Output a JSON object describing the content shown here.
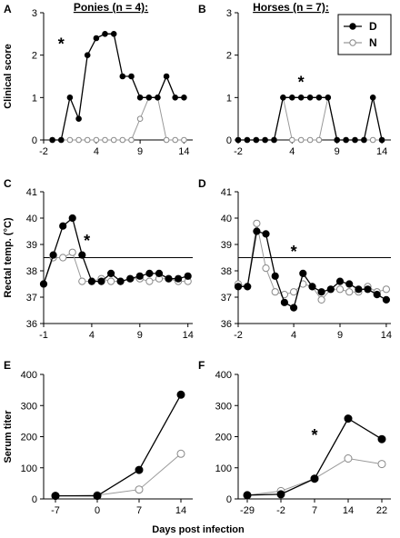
{
  "figure": {
    "x_axis_title": "Days post infection",
    "panel_letters": [
      "A",
      "B",
      "C",
      "D",
      "E",
      "F"
    ]
  },
  "colors": {
    "D": "#000000",
    "N": "#ffffff",
    "N_line": "#999999",
    "axis": "#000000"
  },
  "chart_data": [
    {
      "panel": "A",
      "type": "line",
      "title": "Ponies (n = 4):",
      "ylabel": "Clinical score",
      "xlim": [
        -2,
        15
      ],
      "ylim": [
        0,
        3
      ],
      "xticks": [
        -2,
        4,
        9,
        14
      ],
      "yticks": [
        0,
        1,
        2,
        3
      ],
      "annotations": [
        {
          "text": "*",
          "x": 0,
          "y": 2.3
        }
      ],
      "series": [
        {
          "name": "D",
          "x": [
            -1,
            0,
            1,
            2,
            3,
            4,
            5,
            6,
            7,
            8,
            9,
            10,
            11,
            12,
            13,
            14
          ],
          "y": [
            0,
            0,
            1,
            0.5,
            2,
            2.4,
            2.5,
            2.5,
            1.5,
            1.5,
            1,
            1,
            1,
            1.5,
            1,
            1
          ]
        },
        {
          "name": "N",
          "x": [
            -1,
            0,
            1,
            2,
            3,
            4,
            5,
            6,
            7,
            8,
            9,
            10,
            11,
            12,
            13,
            14
          ],
          "y": [
            0,
            0,
            0,
            0,
            0,
            0,
            0,
            0,
            0,
            0,
            0.5,
            1,
            1,
            0,
            0,
            0
          ]
        }
      ]
    },
    {
      "panel": "B",
      "type": "line",
      "title": "Horses (n = 7):",
      "xlim": [
        -2,
        15
      ],
      "ylim": [
        0,
        3
      ],
      "xticks": [
        -2,
        4,
        9,
        14
      ],
      "yticks": [
        0,
        1,
        2,
        3
      ],
      "legend": {
        "placement": "top-right",
        "entries": [
          "D",
          "N"
        ]
      },
      "annotations": [
        {
          "text": "*",
          "x": 5,
          "y": 1.4
        }
      ],
      "series": [
        {
          "name": "D",
          "x": [
            -2,
            -1,
            0,
            1,
            2,
            3,
            4,
            5,
            6,
            7,
            8,
            9,
            10,
            11,
            12,
            13,
            14
          ],
          "y": [
            0,
            0,
            0,
            0,
            0,
            1,
            1,
            1,
            1,
            1,
            1,
            0,
            0,
            0,
            0,
            1,
            0
          ]
        },
        {
          "name": "N",
          "x": [
            -2,
            -1,
            0,
            1,
            2,
            3,
            4,
            5,
            6,
            7,
            8,
            9,
            10,
            11,
            12,
            13,
            14
          ],
          "y": [
            0,
            0,
            0,
            0,
            0,
            1,
            0,
            0,
            0,
            0,
            1,
            0,
            0,
            0,
            0,
            0,
            0
          ]
        }
      ]
    },
    {
      "panel": "C",
      "type": "line",
      "ylabel": "Rectal temp. (°C)",
      "xlim": [
        -1,
        14.5
      ],
      "ylim": [
        36,
        41
      ],
      "xticks": [
        -1,
        4,
        9,
        14
      ],
      "yticks": [
        36,
        37,
        38,
        39,
        40,
        41
      ],
      "reference_line": 38.5,
      "annotations": [
        {
          "text": "*",
          "x": 3.5,
          "y": 39.2
        }
      ],
      "series": [
        {
          "name": "D",
          "x": [
            -1,
            0,
            1,
            2,
            3,
            4,
            5,
            6,
            7,
            8,
            9,
            10,
            11,
            12,
            13,
            14
          ],
          "y": [
            37.5,
            38.6,
            39.7,
            40.0,
            38.6,
            37.6,
            37.6,
            37.9,
            37.6,
            37.7,
            37.8,
            37.9,
            37.9,
            37.7,
            37.7,
            37.8
          ]
        },
        {
          "name": "N",
          "x": [
            -1,
            0,
            1,
            2,
            3,
            4,
            5,
            6,
            7,
            8,
            9,
            10,
            11,
            12,
            13,
            14
          ],
          "y": [
            37.5,
            38.5,
            38.5,
            38.7,
            37.6,
            37.6,
            37.7,
            37.6,
            37.6,
            37.7,
            37.7,
            37.6,
            37.7,
            37.7,
            37.6,
            37.6
          ]
        }
      ]
    },
    {
      "panel": "D",
      "type": "line",
      "xlim": [
        -2,
        14.5
      ],
      "ylim": [
        36,
        41
      ],
      "xticks": [
        -2,
        4,
        9,
        14
      ],
      "yticks": [
        36,
        37,
        38,
        39,
        40,
        41
      ],
      "reference_line": 38.5,
      "annotations": [
        {
          "text": "*",
          "x": 4,
          "y": 38.8
        }
      ],
      "series": [
        {
          "name": "D",
          "x": [
            -2,
            -1,
            0,
            1,
            2,
            3,
            4,
            5,
            6,
            7,
            8,
            9,
            10,
            11,
            12,
            13,
            14
          ],
          "y": [
            37.4,
            37.4,
            39.5,
            39.4,
            37.8,
            36.8,
            36.6,
            37.9,
            37.4,
            37.2,
            37.3,
            37.6,
            37.5,
            37.3,
            37.3,
            37.1,
            36.9
          ]
        },
        {
          "name": "N",
          "x": [
            -2,
            -1,
            0,
            1,
            2,
            3,
            4,
            5,
            6,
            7,
            8,
            9,
            10,
            11,
            12,
            13,
            14
          ],
          "y": [
            37.5,
            37.4,
            39.8,
            38.1,
            37.2,
            37.1,
            37.2,
            37.5,
            37.4,
            36.9,
            37.3,
            37.3,
            37.2,
            37.2,
            37.4,
            37.2,
            37.3
          ]
        }
      ]
    },
    {
      "panel": "E",
      "type": "line",
      "ylabel": "Serum titer",
      "categories": [
        "-7",
        "0",
        "7",
        "14"
      ],
      "ylim": [
        0,
        400
      ],
      "yticks": [
        0,
        100,
        200,
        300,
        400
      ],
      "series": [
        {
          "name": "D",
          "values": [
            10,
            10,
            93,
            335
          ]
        },
        {
          "name": "N",
          "values": [
            10,
            12,
            30,
            145
          ]
        }
      ]
    },
    {
      "panel": "F",
      "type": "line",
      "categories": [
        "-29",
        "-2",
        "7",
        "14",
        "22"
      ],
      "ylim": [
        0,
        400
      ],
      "yticks": [
        0,
        100,
        200,
        300,
        400
      ],
      "annotations": [
        {
          "text": "*",
          "category_index": 2,
          "y": 210
        }
      ],
      "series": [
        {
          "name": "D",
          "values": [
            12,
            15,
            65,
            258,
            192
          ]
        },
        {
          "name": "N",
          "values": [
            12,
            25,
            65,
            130,
            112
          ]
        }
      ]
    }
  ]
}
